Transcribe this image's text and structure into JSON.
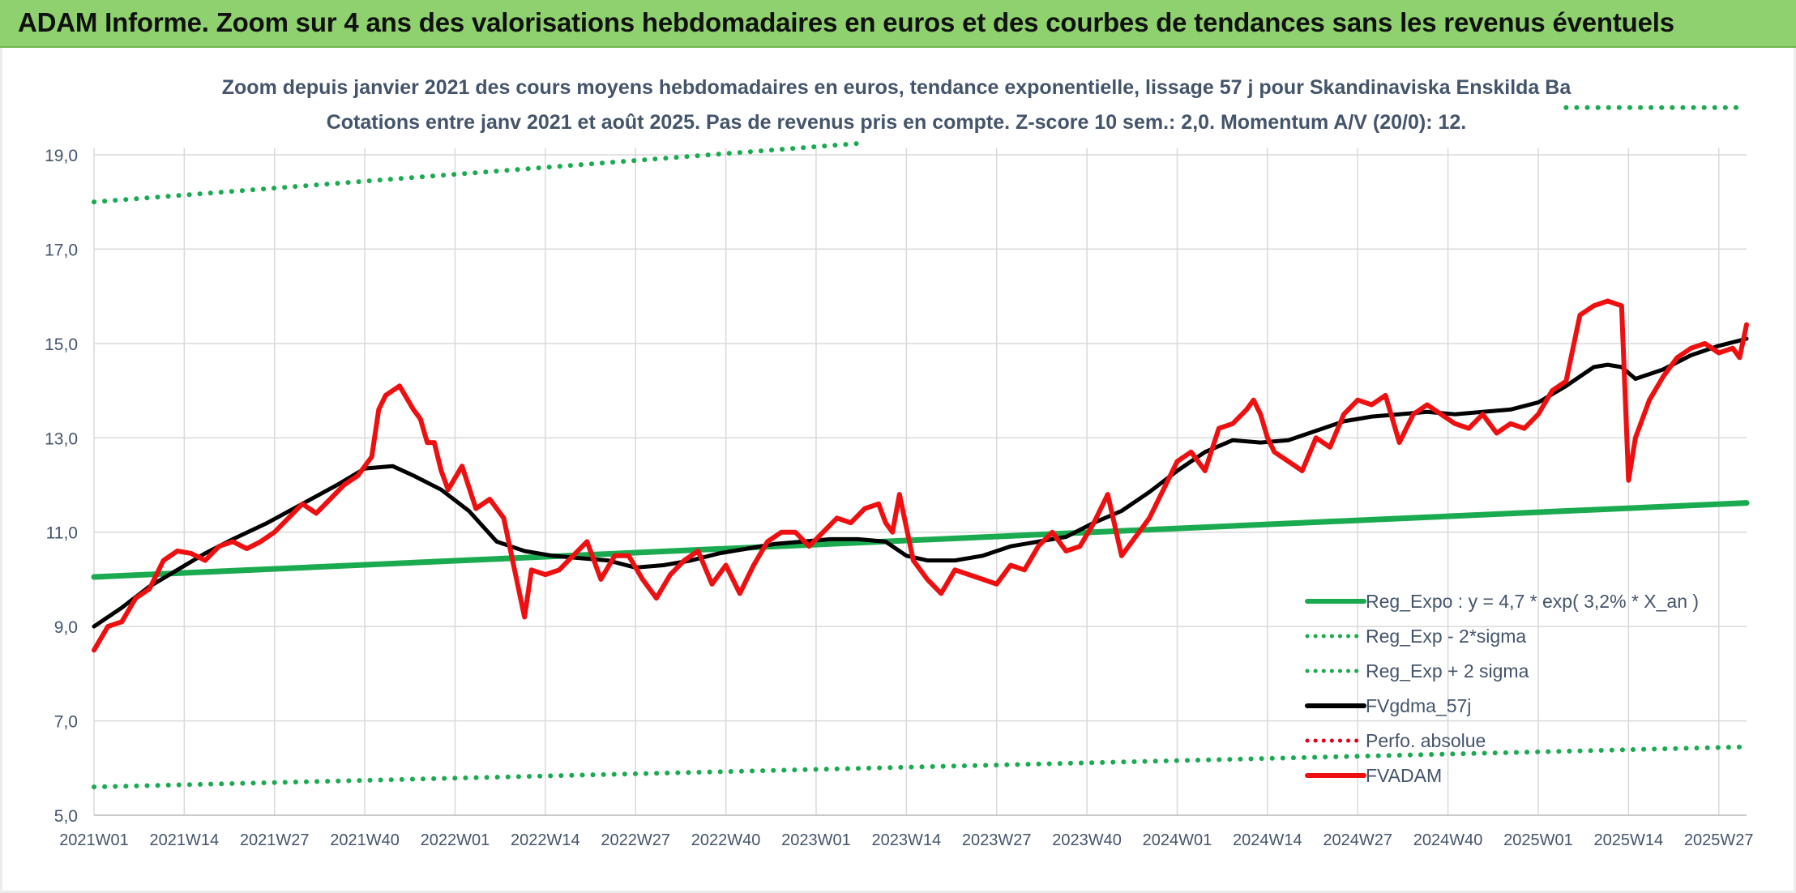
{
  "banner": {
    "title": "ADAM Informe. Zoom sur 4 ans des valorisations hebdomadaires en euros et des courbes de tendances sans les revenus éventuels",
    "color": "#8fd16e"
  },
  "chart_data": {
    "type": "line",
    "title_line1": "Zoom depuis janvier 2021 des cours moyens hebdomadaires en euros, tendance exponentielle, lissage 57 j pour Skandinaviska Enskilda Ba",
    "title_line2": "Cotations entre janv 2021 et août 2025. Pas de revenus pris en compte. Z-score 10 sem.: 2,0. Momentum A/V (20/0): 12.",
    "ylim": [
      5.0,
      19.0
    ],
    "yticks": [
      "19,0",
      "17,0",
      "15,0",
      "13,0",
      "11,0",
      "9,0",
      "7,0",
      "5,0"
    ],
    "ytick_values": [
      19,
      17,
      15,
      13,
      11,
      9,
      7,
      5
    ],
    "xlim": [
      0,
      238
    ],
    "xticks": [
      "2021W01",
      "2021W14",
      "2021W27",
      "2021W40",
      "2022W01",
      "2022W14",
      "2022W27",
      "2022W40",
      "2023W01",
      "2023W14",
      "2023W27",
      "2023W40",
      "2024W01",
      "2024W14",
      "2024W27",
      "2024W40",
      "2025W01",
      "2025W14",
      "2025W27"
    ],
    "xtick_positions": [
      0,
      13,
      26,
      39,
      52,
      65,
      78,
      91,
      104,
      117,
      130,
      143,
      156,
      169,
      182,
      195,
      208,
      221,
      234
    ],
    "grid": true,
    "legend_position": "bottom-right",
    "series": [
      {
        "name": "Reg_Expo : y = 4,7 * exp( 3,2% *  X_an )",
        "color": "#1aab50",
        "style": "solid",
        "x": [
          0,
          238
        ],
        "y": [
          10.05,
          11.62
        ]
      },
      {
        "name": "Reg_Exp - 2*sigma",
        "color": "#1aab50",
        "style": "dotted",
        "x": [
          0,
          238
        ],
        "y": [
          5.6,
          6.45
        ]
      },
      {
        "name": "Reg_Exp + 2 sigma",
        "color": "#1aab50",
        "style": "dotted",
        "x": [
          0,
          111,
          212,
          238
        ],
        "y": [
          18.0,
          19.25,
          20.0,
          20.0
        ],
        "gap_x": [
          111,
          212
        ]
      },
      {
        "name": "FVgdma_57j",
        "color": "#000000",
        "style": "solid",
        "x": [
          0,
          4,
          8,
          12,
          16,
          20,
          25,
          30,
          35,
          39,
          43,
          46,
          50,
          54,
          58,
          62,
          66,
          70,
          74,
          78,
          82,
          86,
          90,
          94,
          98,
          102,
          106,
          110,
          114,
          117,
          120,
          124,
          128,
          132,
          136,
          140,
          144,
          148,
          152,
          156,
          160,
          164,
          168,
          172,
          176,
          180,
          184,
          188,
          192,
          196,
          200,
          204,
          208,
          212,
          216,
          218,
          220,
          222,
          226,
          230,
          234,
          238
        ],
        "y": [
          9.0,
          9.4,
          9.85,
          10.2,
          10.55,
          10.85,
          11.2,
          11.6,
          12.0,
          12.35,
          12.4,
          12.2,
          11.9,
          11.45,
          10.8,
          10.6,
          10.5,
          10.45,
          10.4,
          10.25,
          10.3,
          10.4,
          10.55,
          10.65,
          10.75,
          10.8,
          10.85,
          10.85,
          10.8,
          10.5,
          10.4,
          10.4,
          10.5,
          10.7,
          10.8,
          10.9,
          11.2,
          11.45,
          11.85,
          12.3,
          12.7,
          12.95,
          12.9,
          12.95,
          13.15,
          13.35,
          13.45,
          13.5,
          13.55,
          13.5,
          13.55,
          13.6,
          13.75,
          14.1,
          14.5,
          14.55,
          14.5,
          14.25,
          14.45,
          14.75,
          14.95,
          15.1
        ]
      },
      {
        "name": "Perfo. absolue",
        "color": "#e2001a",
        "style": "dotted",
        "x": [],
        "y": []
      },
      {
        "name": "FVADAM",
        "color": "#ee1010",
        "style": "solid",
        "x": [
          0,
          2,
          4,
          6,
          8,
          10,
          12,
          14,
          16,
          18,
          20,
          22,
          24,
          26,
          28,
          30,
          32,
          34,
          36,
          38,
          40,
          41,
          42,
          44,
          46,
          47,
          48,
          49,
          50,
          51,
          53,
          55,
          57,
          59,
          61,
          62,
          63,
          65,
          67,
          69,
          71,
          73,
          75,
          77,
          79,
          81,
          83,
          85,
          87,
          89,
          91,
          93,
          94,
          95,
          97,
          99,
          101,
          103,
          105,
          107,
          109,
          111,
          113,
          114,
          115,
          116,
          118,
          120,
          122,
          124,
          126,
          128,
          130,
          132,
          134,
          136,
          138,
          140,
          142,
          144,
          146,
          148,
          150,
          152,
          154,
          156,
          158,
          160,
          162,
          164,
          166,
          167,
          168,
          169,
          170,
          172,
          174,
          176,
          178,
          180,
          182,
          184,
          186,
          188,
          190,
          192,
          194,
          196,
          198,
          200,
          202,
          204,
          206,
          208,
          210,
          212,
          214,
          216,
          218,
          220,
          221,
          222,
          224,
          226,
          228,
          230,
          232,
          234,
          236,
          237,
          238
        ],
        "y": [
          8.5,
          9.0,
          9.1,
          9.6,
          9.8,
          10.4,
          10.6,
          10.55,
          10.4,
          10.7,
          10.8,
          10.65,
          10.8,
          11.0,
          11.3,
          11.6,
          11.4,
          11.7,
          12.0,
          12.2,
          12.6,
          13.6,
          13.9,
          14.1,
          13.6,
          13.4,
          12.9,
          12.9,
          12.3,
          11.9,
          12.4,
          11.5,
          11.7,
          11.3,
          9.9,
          9.2,
          10.2,
          10.1,
          10.2,
          10.5,
          10.8,
          10.0,
          10.5,
          10.5,
          10.0,
          9.6,
          10.1,
          10.4,
          10.6,
          9.9,
          10.3,
          9.7,
          10.0,
          10.3,
          10.8,
          11.0,
          11.0,
          10.7,
          11.0,
          11.3,
          11.2,
          11.5,
          11.6,
          11.2,
          11.0,
          11.8,
          10.4,
          10.0,
          9.7,
          10.2,
          10.1,
          10.0,
          9.9,
          10.3,
          10.2,
          10.7,
          11.0,
          10.6,
          10.7,
          11.2,
          11.8,
          10.5,
          10.9,
          11.3,
          11.9,
          12.5,
          12.7,
          12.3,
          13.2,
          13.3,
          13.6,
          13.8,
          13.5,
          13.0,
          12.7,
          12.5,
          12.3,
          13.0,
          12.8,
          13.5,
          13.8,
          13.7,
          13.9,
          12.9,
          13.5,
          13.7,
          13.5,
          13.3,
          13.2,
          13.5,
          13.1,
          13.3,
          13.2,
          13.5,
          14.0,
          14.2,
          15.6,
          15.8,
          15.9,
          15.8,
          12.1,
          13.0,
          13.8,
          14.3,
          14.7,
          14.9,
          15.0,
          14.8,
          14.9,
          14.7,
          15.4
        ]
      }
    ]
  }
}
